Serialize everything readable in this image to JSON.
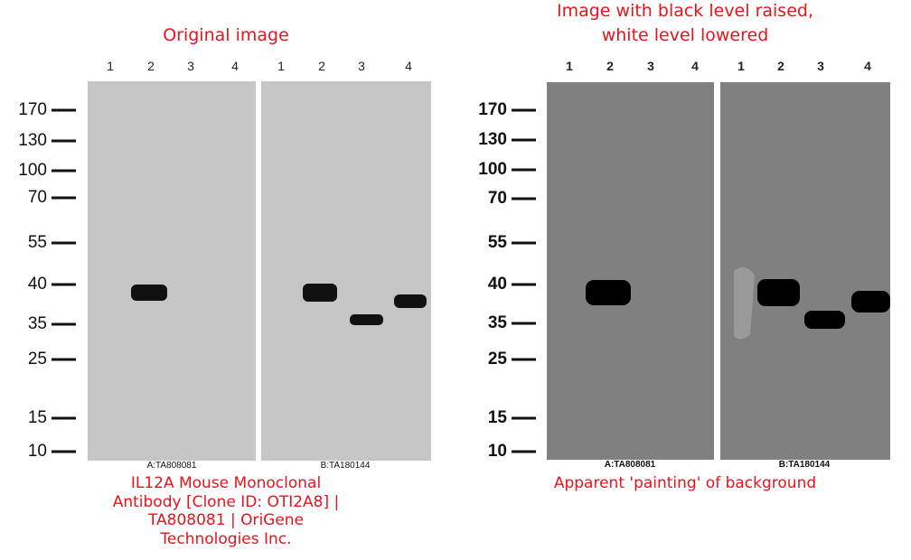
{
  "panels": [
    {
      "title": [
        "Original image"
      ],
      "lanes": [
        "1",
        "2",
        "3",
        "4",
        "1",
        "2",
        "3",
        "4"
      ],
      "markers": [
        "170",
        "130",
        "100",
        "70",
        "55",
        "40",
        "35",
        "25",
        "15",
        "10"
      ],
      "blots": [
        "A:TA808081",
        "B:TA180144"
      ],
      "caption": [
        "IL12A Mouse Monoclonal",
        "Antibody [Clone ID: OTI2A8] |",
        "TA808081 | OriGene",
        "Technologies Inc."
      ]
    },
    {
      "title": [
        "Image with black level raised,",
        "white level lowered"
      ],
      "lanes": [
        "1",
        "2",
        "3",
        "4",
        "1",
        "2",
        "3",
        "4"
      ],
      "markers": [
        "170",
        "130",
        "100",
        "70",
        "55",
        "40",
        "35",
        "25",
        "15",
        "10"
      ],
      "blots": [
        "A:TA808081",
        "B:TA180144"
      ],
      "caption": [
        "Apparent 'painting' of background"
      ]
    }
  ]
}
